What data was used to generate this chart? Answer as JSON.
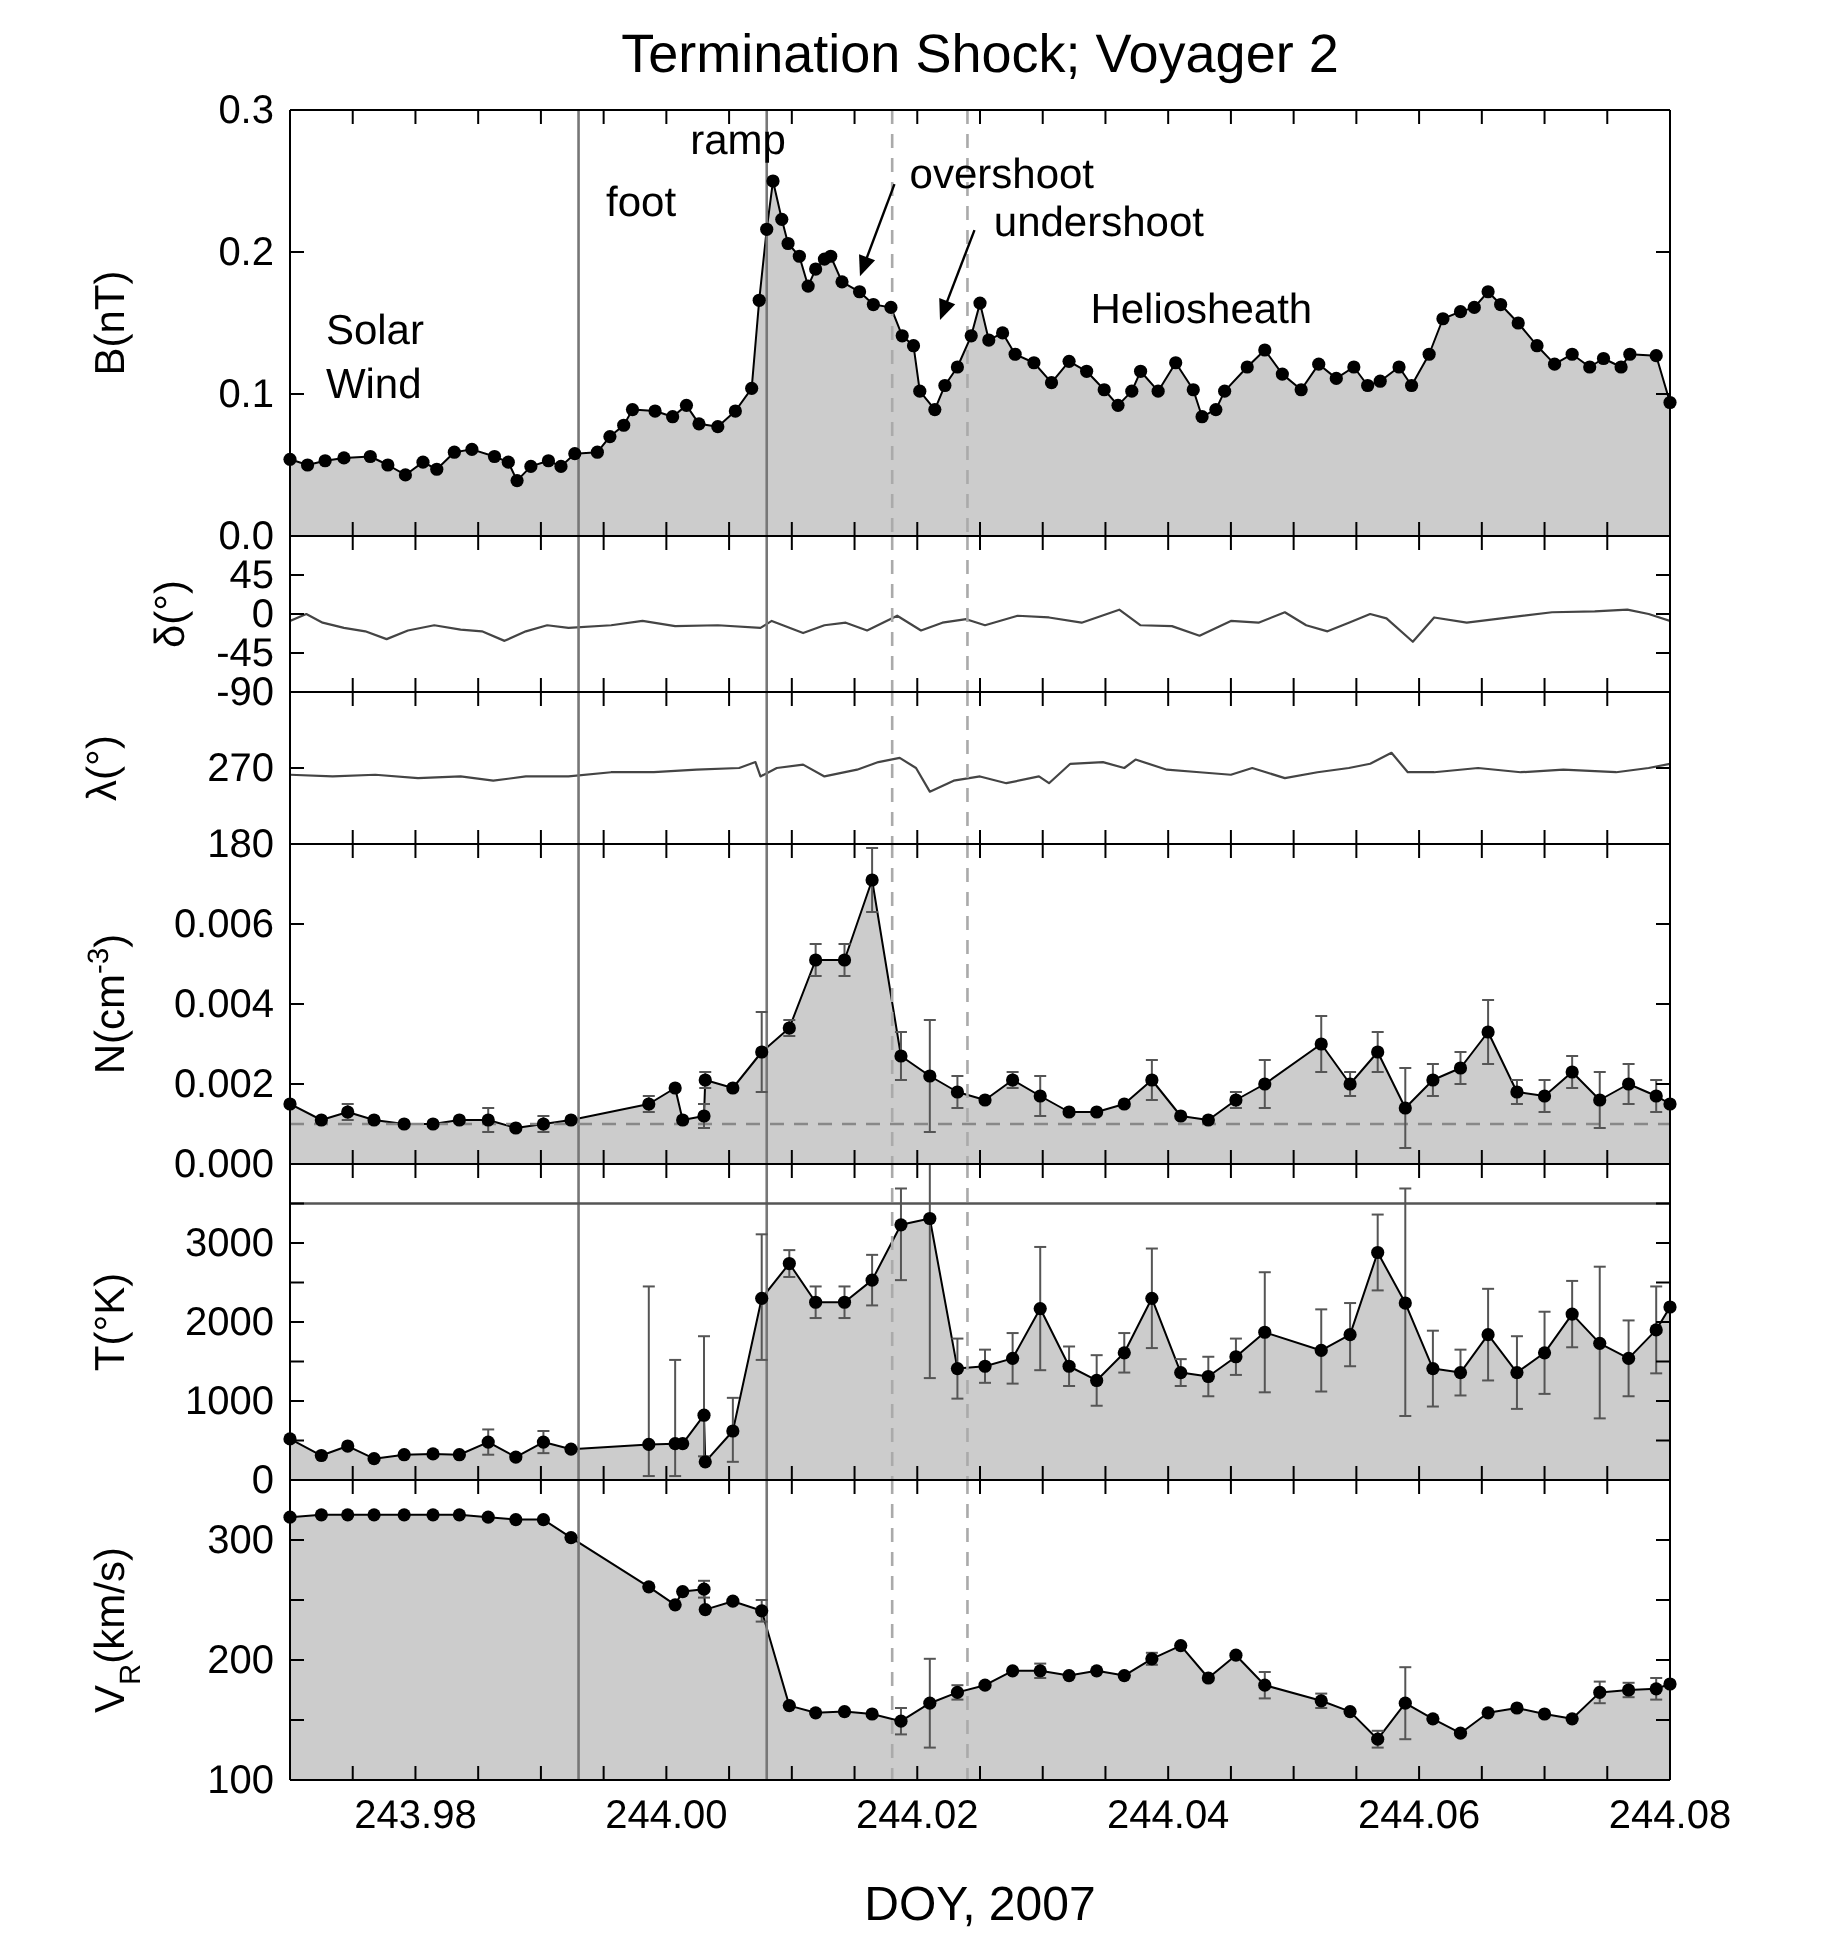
{
  "chart_data": [
    {
      "type": "area",
      "title": "Termination Shock; Voyager 2",
      "ylabel": "B(nT)",
      "marker": "circle",
      "color": "#cccccc",
      "tick_labels": "y",
      "xlim": [
        243.97,
        244.08
      ],
      "xticks": [
        {
          "value": 243.975,
          "label": null
        },
        243.98,
        {
          "value": 243.985,
          "label": null
        },
        {
          "value": 243.99,
          "label": null
        },
        {
          "value": 243.995,
          "label": null
        },
        244.0,
        {
          "value": 244.005,
          "label": null
        },
        {
          "value": 244.01,
          "label": null
        },
        {
          "value": 244.015,
          "label": null
        },
        244.02,
        {
          "value": 244.025,
          "label": null
        },
        {
          "value": 244.03,
          "label": null
        },
        {
          "value": 244.035,
          "label": null
        },
        244.04,
        {
          "value": 244.045,
          "label": null
        },
        {
          "value": 244.05,
          "label": null
        },
        {
          "value": 244.055,
          "label": null
        },
        244.06,
        {
          "value": 244.065,
          "label": null
        },
        {
          "value": 244.07,
          "label": null
        },
        {
          "value": 244.075,
          "label": null
        },
        244.08
      ],
      "ylim": [
        0,
        0.3
      ],
      "yticks": [
        {
          "value": 0,
          "label": "0.0"
        },
        0.1,
        0.2,
        0.3
      ],
      "annotations": [
        "Solar Wind",
        "foot",
        "ramp",
        "overshoot",
        "undershoot",
        "Heliosheath"
      ],
      "ref_lines": [
        {
          "axis": "x",
          "value": 243.993,
          "color": "#777777",
          "line_style": "solid"
        },
        {
          "axis": "x",
          "value": 244.008,
          "color": "#777777",
          "line_style": "solid"
        },
        {
          "axis": "x",
          "value": 244.018,
          "color": "#aaaaaa",
          "line_style": "dashed"
        },
        {
          "axis": "x",
          "value": 244.024,
          "color": "#aaaaaa",
          "line_style": "dashed"
        }
      ],
      "x": [
        243.97,
        243.9714,
        243.9728,
        243.9743,
        243.9764,
        243.9778,
        243.9792,
        243.9806,
        243.9817,
        243.9831,
        243.9845,
        243.9863,
        243.9874,
        243.9881,
        243.9892,
        243.9906,
        243.9916,
        243.9927,
        243.9945,
        243.9955,
        243.9966,
        243.9973,
        243.9991,
        244.0005,
        244.0016,
        244.0026,
        244.0041,
        244.0055,
        244.0068,
        244.0074,
        244.008,
        244.0085,
        244.0092,
        244.0097,
        244.0106,
        244.0113,
        244.0119,
        244.0126,
        244.0131,
        244.014,
        244.0154,
        244.0165,
        244.0179,
        244.0188,
        244.0197,
        244.0202,
        244.0214,
        244.0222,
        244.0232,
        244.0243,
        244.025,
        244.0257,
        244.0268,
        244.0278,
        244.0293,
        244.0307,
        244.0321,
        244.0335,
        244.0349,
        244.036,
        244.0371,
        244.0378,
        244.0392,
        244.0406,
        244.042,
        244.0427,
        244.0438,
        244.0445,
        244.0463,
        244.0477,
        244.0491,
        244.0506,
        244.052,
        244.0534,
        244.0548,
        244.0559,
        244.0569,
        244.0584,
        244.0594,
        244.0608,
        244.0619,
        244.0633,
        244.0644,
        244.0655,
        244.0665,
        244.0679,
        244.0694,
        244.0708,
        244.0722,
        244.0736,
        244.0747,
        244.0761,
        244.0768,
        244.0789,
        244.08
      ],
      "values": [
        0.054,
        0.05,
        0.053,
        0.055,
        0.056,
        0.05,
        0.043,
        0.052,
        0.047,
        0.059,
        0.061,
        0.056,
        0.052,
        0.039,
        0.049,
        0.053,
        0.049,
        0.058,
        0.059,
        0.07,
        0.078,
        0.089,
        0.088,
        0.084,
        0.092,
        0.079,
        0.077,
        0.088,
        0.104,
        0.166,
        0.216,
        0.25,
        0.223,
        0.206,
        0.197,
        0.176,
        0.188,
        0.195,
        0.197,
        0.179,
        0.172,
        0.163,
        0.161,
        0.141,
        0.134,
        0.102,
        0.089,
        0.106,
        0.119,
        0.141,
        0.164,
        0.138,
        0.143,
        0.128,
        0.122,
        0.108,
        0.123,
        0.116,
        0.103,
        0.092,
        0.102,
        0.116,
        0.102,
        0.122,
        0.103,
        0.084,
        0.089,
        0.102,
        0.119,
        0.131,
        0.114,
        0.103,
        0.121,
        0.111,
        0.119,
        0.106,
        0.109,
        0.119,
        0.106,
        0.128,
        0.153,
        0.158,
        0.161,
        0.172,
        0.163,
        0.15,
        0.134,
        0.121,
        0.128,
        0.119,
        0.125,
        0.119,
        0.128,
        0.127,
        0.094
      ]
    },
    {
      "type": "line",
      "ylabel": "δ(°)",
      "color": "#444444",
      "tick_labels": "y",
      "xlim": [
        243.97,
        244.08
      ],
      "xticks": [
        {
          "value": 243.975,
          "label": null
        },
        243.98,
        {
          "value": 243.985,
          "label": null
        },
        {
          "value": 243.99,
          "label": null
        },
        {
          "value": 243.995,
          "label": null
        },
        244.0,
        {
          "value": 244.005,
          "label": null
        },
        {
          "value": 244.01,
          "label": null
        },
        {
          "value": 244.015,
          "label": null
        },
        244.02,
        {
          "value": 244.025,
          "label": null
        },
        {
          "value": 244.03,
          "label": null
        },
        {
          "value": 244.035,
          "label": null
        },
        244.04,
        {
          "value": 244.045,
          "label": null
        },
        {
          "value": 244.05,
          "label": null
        },
        {
          "value": 244.055,
          "label": null
        },
        244.06,
        {
          "value": 244.065,
          "label": null
        },
        {
          "value": 244.07,
          "label": null
        },
        {
          "value": 244.075,
          "label": null
        },
        244.08
      ],
      "ylim": [
        -90,
        90
      ],
      "yticks": [
        -90,
        -45,
        0,
        45,
        {
          "value": 90,
          "label": null
        }
      ],
      "ref_lines": [
        {
          "axis": "x",
          "value": 243.993,
          "color": "#777777",
          "line_style": "solid"
        },
        {
          "axis": "x",
          "value": 244.008,
          "color": "#777777",
          "line_style": "solid"
        },
        {
          "axis": "x",
          "value": 244.018,
          "color": "#aaaaaa",
          "line_style": "dashed"
        },
        {
          "axis": "x",
          "value": 244.024,
          "color": "#aaaaaa",
          "line_style": "dashed"
        }
      ],
      "x": [
        243.97,
        243.9713,
        243.9726,
        243.9743,
        243.976,
        243.9777,
        243.9794,
        243.9815,
        243.9836,
        243.9853,
        243.9871,
        243.9888,
        243.9905,
        243.9922,
        243.9956,
        243.9981,
        244.0007,
        244.0041,
        244.0075,
        244.0084,
        244.0109,
        244.0126,
        244.0143,
        244.016,
        244.0184,
        244.0203,
        244.022,
        244.0239,
        244.0254,
        244.028,
        244.0305,
        244.0331,
        244.0361,
        244.0378,
        244.0403,
        244.0425,
        244.045,
        244.0472,
        244.0493,
        244.051,
        244.0527,
        244.0544,
        244.0561,
        244.0574,
        244.0595,
        244.0612,
        244.0638,
        244.0672,
        244.0706,
        244.074,
        244.0766,
        244.0783,
        244.08
      ],
      "values": [
        -8,
        0,
        -10,
        -16,
        -20,
        -29,
        -19,
        -13,
        -18,
        -20,
        -31,
        -20,
        -13,
        -16,
        -13,
        -8,
        -14,
        -13,
        -16,
        -8,
        -22,
        -13,
        -10,
        -19,
        -2,
        -19,
        -10,
        -6,
        -13,
        -2,
        -4,
        -10,
        5,
        -13,
        -14,
        -25,
        -8,
        -10,
        2,
        -13,
        -20,
        -10,
        0,
        -5,
        -32,
        -4,
        -10,
        -4,
        2,
        3,
        5,
        0,
        -8
      ]
    },
    {
      "type": "line",
      "ylabel": "λ(°)",
      "color": "#444444",
      "tick_labels": "y",
      "xlim": [
        243.97,
        244.08
      ],
      "xticks": [
        {
          "value": 243.975,
          "label": null
        },
        243.98,
        {
          "value": 243.985,
          "label": null
        },
        {
          "value": 243.99,
          "label": null
        },
        {
          "value": 243.995,
          "label": null
        },
        244.0,
        {
          "value": 244.005,
          "label": null
        },
        {
          "value": 244.01,
          "label": null
        },
        {
          "value": 244.015,
          "label": null
        },
        244.02,
        {
          "value": 244.025,
          "label": null
        },
        {
          "value": 244.03,
          "label": null
        },
        {
          "value": 244.035,
          "label": null
        },
        244.04,
        {
          "value": 244.045,
          "label": null
        },
        {
          "value": 244.05,
          "label": null
        },
        {
          "value": 244.055,
          "label": null
        },
        244.06,
        {
          "value": 244.065,
          "label": null
        },
        {
          "value": 244.07,
          "label": null
        },
        {
          "value": 244.075,
          "label": null
        },
        244.08
      ],
      "ylim": [
        180,
        360
      ],
      "yticks": [
        180,
        270,
        {
          "value": 360,
          "label": null
        }
      ],
      "ref_lines": [
        {
          "axis": "x",
          "value": 243.993,
          "color": "#777777",
          "line_style": "solid"
        },
        {
          "axis": "x",
          "value": 244.008,
          "color": "#777777",
          "line_style": "solid"
        },
        {
          "axis": "x",
          "value": 244.018,
          "color": "#aaaaaa",
          "line_style": "dashed"
        },
        {
          "axis": "x",
          "value": 244.024,
          "color": "#aaaaaa",
          "line_style": "dashed"
        }
      ],
      "x": [
        243.97,
        243.9734,
        243.9768,
        243.9802,
        243.9836,
        243.9862,
        243.9888,
        243.9922,
        243.9956,
        243.999,
        244.0024,
        244.0058,
        244.0071,
        244.0075,
        244.0088,
        244.0109,
        244.0126,
        244.0152,
        244.0169,
        244.0186,
        244.0199,
        244.021,
        244.0229,
        244.025,
        244.0271,
        244.0297,
        244.0305,
        244.0322,
        244.0348,
        244.0365,
        244.0374,
        244.0399,
        244.0425,
        244.045,
        244.0467,
        244.0493,
        244.0519,
        244.0544,
        244.0561,
        244.0578,
        244.0591,
        244.0612,
        244.0647,
        244.0681,
        244.0715,
        244.0757,
        244.0783,
        244.08
      ],
      "values": [
        262,
        260,
        262,
        258,
        260,
        255,
        260,
        260,
        265,
        265,
        268,
        270,
        277,
        260,
        270,
        274,
        260,
        268,
        277,
        282,
        270,
        242,
        255,
        260,
        252,
        260,
        252,
        275,
        277,
        270,
        280,
        268,
        265,
        262,
        270,
        258,
        265,
        270,
        275,
        288,
        265,
        265,
        270,
        265,
        268,
        265,
        270,
        275
      ]
    },
    {
      "type": "area",
      "ylabel": "N(cm$^{-3}$)",
      "marker": "circle",
      "color": "#cccccc",
      "tick_labels": "y",
      "xlim": [
        243.97,
        244.08
      ],
      "xticks": [
        {
          "value": 243.975,
          "label": null
        },
        243.98,
        {
          "value": 243.985,
          "label": null
        },
        {
          "value": 243.99,
          "label": null
        },
        {
          "value": 243.995,
          "label": null
        },
        244.0,
        {
          "value": 244.005,
          "label": null
        },
        {
          "value": 244.01,
          "label": null
        },
        {
          "value": 244.015,
          "label": null
        },
        244.02,
        {
          "value": 244.025,
          "label": null
        },
        {
          "value": 244.03,
          "label": null
        },
        {
          "value": 244.035,
          "label": null
        },
        244.04,
        {
          "value": 244.045,
          "label": null
        },
        {
          "value": 244.05,
          "label": null
        },
        {
          "value": 244.055,
          "label": null
        },
        244.06,
        {
          "value": 244.065,
          "label": null
        },
        {
          "value": 244.07,
          "label": null
        },
        {
          "value": 244.075,
          "label": null
        },
        244.08
      ],
      "ylim": [
        0,
        0.008
      ],
      "yticks": [
        {
          "value": 0,
          "label": "0.000"
        },
        0.002,
        0.004,
        0.006,
        {
          "value": 0.008,
          "label": null
        }
      ],
      "ref_lines": [
        {
          "axis": "x",
          "value": 243.993,
          "color": "#777777",
          "line_style": "solid"
        },
        {
          "axis": "x",
          "value": 244.008,
          "color": "#777777",
          "line_style": "solid"
        },
        {
          "axis": "x",
          "value": 244.018,
          "color": "#aaaaaa",
          "line_style": "dashed"
        },
        {
          "axis": "x",
          "value": 244.024,
          "color": "#aaaaaa",
          "line_style": "dashed"
        },
        {
          "axis": "y",
          "value": 0.001,
          "color": "#888888",
          "line_style": "dashed"
        }
      ],
      "x": [
        243.97,
        243.9725,
        243.9746,
        243.9767,
        243.9791,
        243.9814,
        243.9835,
        243.9858,
        243.988,
        243.9902,
        243.9924,
        243.9986,
        244.0007,
        244.0013,
        244.003,
        244.0031,
        244.0053,
        244.0076,
        244.0098,
        244.0119,
        244.0142,
        244.0164,
        244.0187,
        244.021,
        244.0232,
        244.0254,
        244.0276,
        244.0298,
        244.0321,
        244.0343,
        244.0365,
        244.0387,
        244.041,
        244.0432,
        244.0454,
        244.0477,
        244.0522,
        244.0545,
        244.0567,
        244.0589,
        244.0611,
        244.0633,
        244.0655,
        244.0678,
        244.07,
        244.0722,
        244.0744,
        244.0767,
        244.0789,
        244.08
      ],
      "values": [
        0.0015,
        0.0011,
        0.0013,
        0.0011,
        0.001,
        0.001,
        0.0011,
        0.0011,
        0.0009,
        0.001,
        0.0011,
        0.0015,
        0.0019,
        0.0011,
        0.0012,
        0.0021,
        0.0019,
        0.0028,
        0.0034,
        0.0051,
        0.0051,
        0.0071,
        0.0027,
        0.0022,
        0.0018,
        0.0016,
        0.0021,
        0.0017,
        0.0013,
        0.0013,
        0.0015,
        0.0021,
        0.0012,
        0.0011,
        0.0016,
        0.002,
        0.003,
        0.002,
        0.0028,
        0.0014,
        0.0021,
        0.0024,
        0.0033,
        0.0018,
        0.0017,
        0.0023,
        0.0016,
        0.002,
        0.0017,
        0.0015
      ],
      "errors": [
        null,
        null,
        0.0002,
        null,
        null,
        null,
        null,
        0.0003,
        null,
        0.0002,
        null,
        0.0002,
        null,
        null,
        0.0003,
        0.0002,
        null,
        0.001,
        0.0002,
        0.0004,
        0.0004,
        0.0008,
        0.0006,
        0.0014,
        0.0004,
        null,
        0.0002,
        0.0005,
        null,
        null,
        null,
        0.0005,
        null,
        null,
        0.0002,
        0.0006,
        0.0007,
        0.0003,
        0.0005,
        0.001,
        0.0004,
        0.0004,
        0.0008,
        0.0003,
        0.0004,
        0.0004,
        0.0007,
        0.0005,
        0.0004,
        null
      ]
    },
    {
      "type": "area",
      "ylabel": "T(°K)",
      "marker": "circle",
      "color": "#cccccc",
      "tick_labels": "y",
      "xlim": [
        243.97,
        244.08
      ],
      "xticks": [
        {
          "value": 243.975,
          "label": null
        },
        243.98,
        {
          "value": 243.985,
          "label": null
        },
        {
          "value": 243.99,
          "label": null
        },
        {
          "value": 243.995,
          "label": null
        },
        244.0,
        {
          "value": 244.005,
          "label": null
        },
        {
          "value": 244.01,
          "label": null
        },
        {
          "value": 244.015,
          "label": null
        },
        244.02,
        {
          "value": 244.025,
          "label": null
        },
        {
          "value": 244.03,
          "label": null
        },
        {
          "value": 244.035,
          "label": null
        },
        244.04,
        {
          "value": 244.045,
          "label": null
        },
        {
          "value": 244.05,
          "label": null
        },
        {
          "value": 244.055,
          "label": null
        },
        244.06,
        {
          "value": 244.065,
          "label": null
        },
        {
          "value": 244.07,
          "label": null
        },
        {
          "value": 244.075,
          "label": null
        },
        244.08
      ],
      "ylim": [
        0,
        4000
      ],
      "yticks": [
        0,
        {
          "value": 500,
          "label": null
        },
        1000,
        {
          "value": 1500,
          "label": null
        },
        2000,
        {
          "value": 2500,
          "label": null
        },
        3000,
        {
          "value": 3500,
          "label": null
        },
        {
          "value": 4000,
          "label": null
        }
      ],
      "ref_lines": [
        {
          "axis": "x",
          "value": 243.993,
          "color": "#777777",
          "line_style": "solid"
        },
        {
          "axis": "x",
          "value": 244.008,
          "color": "#777777",
          "line_style": "solid"
        },
        {
          "axis": "x",
          "value": 244.018,
          "color": "#aaaaaa",
          "line_style": "dashed"
        },
        {
          "axis": "x",
          "value": 244.024,
          "color": "#aaaaaa",
          "line_style": "dashed"
        },
        {
          "axis": "y",
          "value": 3500,
          "color": "#555555",
          "line_style": "solid"
        }
      ],
      "x": [
        243.97,
        243.9725,
        243.9746,
        243.9767,
        243.9791,
        243.9814,
        243.9835,
        243.9858,
        243.988,
        243.9902,
        243.9924,
        243.9986,
        244.0007,
        244.0013,
        244.003,
        244.0031,
        244.0053,
        244.0076,
        244.0098,
        244.0119,
        244.0142,
        244.0164,
        244.0187,
        244.021,
        244.0232,
        244.0254,
        244.0276,
        244.0298,
        244.0321,
        244.0343,
        244.0365,
        244.0387,
        244.041,
        244.0432,
        244.0454,
        244.0477,
        244.0522,
        244.0545,
        244.0567,
        244.0589,
        244.0611,
        244.0633,
        244.0655,
        244.0678,
        244.07,
        244.0722,
        244.0744,
        244.0767,
        244.0789,
        244.08
      ],
      "values": [
        520,
        310,
        430,
        270,
        320,
        330,
        320,
        480,
        290,
        480,
        390,
        450,
        460,
        460,
        820,
        230,
        620,
        2300,
        2740,
        2250,
        2250,
        2530,
        3230,
        3310,
        1410,
        1440,
        1540,
        2170,
        1440,
        1260,
        1610,
        2300,
        1360,
        1310,
        1560,
        1870,
        1640,
        1840,
        2880,
        2240,
        1410,
        1360,
        1840,
        1360,
        1610,
        2100,
        1730,
        1540,
        1900,
        2190
      ],
      "errors": [
        null,
        null,
        null,
        null,
        null,
        null,
        null,
        160,
        null,
        140,
        null,
        [
          50,
          2450
        ],
        [
          50,
          1520
        ],
        null,
        [
          300,
          1820
        ],
        null,
        [
          230,
          1040
        ],
        [
          1520,
          3110
        ],
        170,
        200,
        200,
        320,
        [
          2530,
          3690
        ],
        [
          1290,
          4000
        ],
        380,
        210,
        320,
        780,
        250,
        320,
        250,
        630,
        170,
        250,
        230,
        760,
        520,
        400,
        480,
        [
          810,
          3690
        ],
        480,
        290,
        580,
        460,
        520,
        420,
        [
          780,
          2700
        ],
        480,
        550,
        null
      ]
    },
    {
      "type": "area",
      "ylabel": "V$_{R}$(km/s)",
      "xlabel": "DOY, 2007",
      "marker": "circle",
      "color": "#cccccc",
      "xlim": [
        243.97,
        244.08
      ],
      "xticks": [
        {
          "value": 243.975,
          "label": null
        },
        243.98,
        {
          "value": 243.985,
          "label": null
        },
        {
          "value": 243.99,
          "label": null
        },
        {
          "value": 243.995,
          "label": null
        },
        {
          "value": 244.0,
          "label": "244.00"
        },
        {
          "value": 244.005,
          "label": null
        },
        {
          "value": 244.01,
          "label": null
        },
        {
          "value": 244.015,
          "label": null
        },
        244.02,
        {
          "value": 244.025,
          "label": null
        },
        {
          "value": 244.03,
          "label": null
        },
        {
          "value": 244.035,
          "label": null
        },
        244.04,
        {
          "value": 244.045,
          "label": null
        },
        {
          "value": 244.05,
          "label": null
        },
        {
          "value": 244.055,
          "label": null
        },
        244.06,
        {
          "value": 244.065,
          "label": null
        },
        {
          "value": 244.07,
          "label": null
        },
        {
          "value": 244.075,
          "label": null
        },
        244.08
      ],
      "ylim": [
        100,
        350
      ],
      "yticks": [
        100,
        {
          "value": 150,
          "label": null
        },
        200,
        {
          "value": 250,
          "label": null
        },
        300
      ],
      "ref_lines": [
        {
          "axis": "x",
          "value": 243.993,
          "color": "#777777",
          "line_style": "solid"
        },
        {
          "axis": "x",
          "value": 244.008,
          "color": "#777777",
          "line_style": "solid"
        },
        {
          "axis": "x",
          "value": 244.018,
          "color": "#aaaaaa",
          "line_style": "dashed"
        },
        {
          "axis": "x",
          "value": 244.024,
          "color": "#aaaaaa",
          "line_style": "dashed"
        }
      ],
      "x": [
        243.97,
        243.9725,
        243.9746,
        243.9767,
        243.9791,
        243.9814,
        243.9835,
        243.9858,
        243.988,
        243.9902,
        243.9924,
        243.9986,
        244.0007,
        244.0013,
        244.003,
        244.0031,
        244.0053,
        244.0076,
        244.0098,
        244.0119,
        244.0142,
        244.0164,
        244.0187,
        244.021,
        244.0232,
        244.0254,
        244.0276,
        244.0298,
        244.0321,
        244.0343,
        244.0365,
        244.0387,
        244.041,
        244.0432,
        244.0454,
        244.0477,
        244.0522,
        244.0545,
        244.0567,
        244.0589,
        244.0611,
        244.0633,
        244.0655,
        244.0678,
        244.07,
        244.0722,
        244.0744,
        244.0767,
        244.0789,
        244.08
      ],
      "values": [
        319,
        321,
        321,
        321,
        321,
        321,
        321,
        319,
        317,
        317,
        302,
        261,
        246,
        257,
        259,
        242,
        249,
        241,
        162,
        156,
        157,
        155,
        149,
        164,
        173,
        179,
        191,
        191,
        187,
        191,
        187,
        201,
        212,
        185,
        204,
        179,
        166,
        157,
        134,
        164,
        151,
        139,
        156,
        160,
        155,
        151,
        173,
        175,
        176,
        180
      ],
      "errors": [
        null,
        null,
        null,
        null,
        null,
        null,
        null,
        null,
        null,
        null,
        null,
        null,
        null,
        null,
        7,
        null,
        null,
        9,
        null,
        null,
        null,
        null,
        11,
        37,
        6,
        null,
        null,
        6,
        null,
        null,
        null,
        5,
        null,
        null,
        null,
        11,
        6,
        null,
        7,
        30,
        null,
        null,
        null,
        null,
        null,
        null,
        9,
        6,
        9,
        null
      ]
    }
  ]
}
